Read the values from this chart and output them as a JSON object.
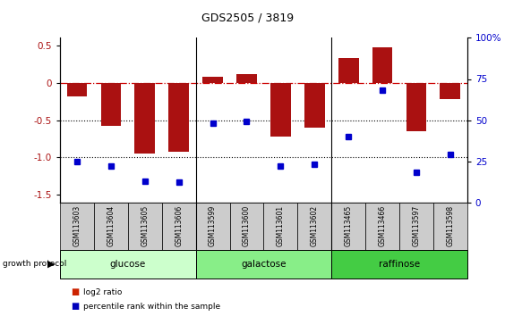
{
  "title": "GDS2505 / 3819",
  "samples": [
    "GSM113603",
    "GSM113604",
    "GSM113605",
    "GSM113606",
    "GSM113599",
    "GSM113600",
    "GSM113601",
    "GSM113602",
    "GSM113465",
    "GSM113466",
    "GSM113597",
    "GSM113598"
  ],
  "log2_ratio": [
    -0.18,
    -0.58,
    -0.95,
    -0.92,
    0.08,
    0.12,
    -0.72,
    -0.6,
    0.33,
    0.47,
    -0.65,
    -0.22
  ],
  "percentile_rank": [
    25,
    22,
    13,
    12,
    48,
    49,
    22,
    23,
    40,
    68,
    18,
    29
  ],
  "groups": [
    {
      "label": "glucose",
      "start": 0,
      "end": 4,
      "color": "#ccffcc"
    },
    {
      "label": "galactose",
      "start": 4,
      "end": 8,
      "color": "#88ee88"
    },
    {
      "label": "raffinose",
      "start": 8,
      "end": 12,
      "color": "#44cc44"
    }
  ],
  "ylim_left": [
    -1.6,
    0.6
  ],
  "ylim_right": [
    0,
    100
  ],
  "yticks_left": [
    -1.5,
    -1.0,
    -0.5,
    0.0,
    0.5
  ],
  "yticks_right": [
    0,
    25,
    50,
    75,
    100
  ],
  "bar_color": "#aa1111",
  "dot_color": "#0000cc",
  "hline_color": "#cc0000",
  "dotline_color": "#000000",
  "bar_width": 0.6,
  "sample_box_color": "#cccccc",
  "legend_square_red": "#cc2200",
  "legend_square_blue": "#0000bb"
}
